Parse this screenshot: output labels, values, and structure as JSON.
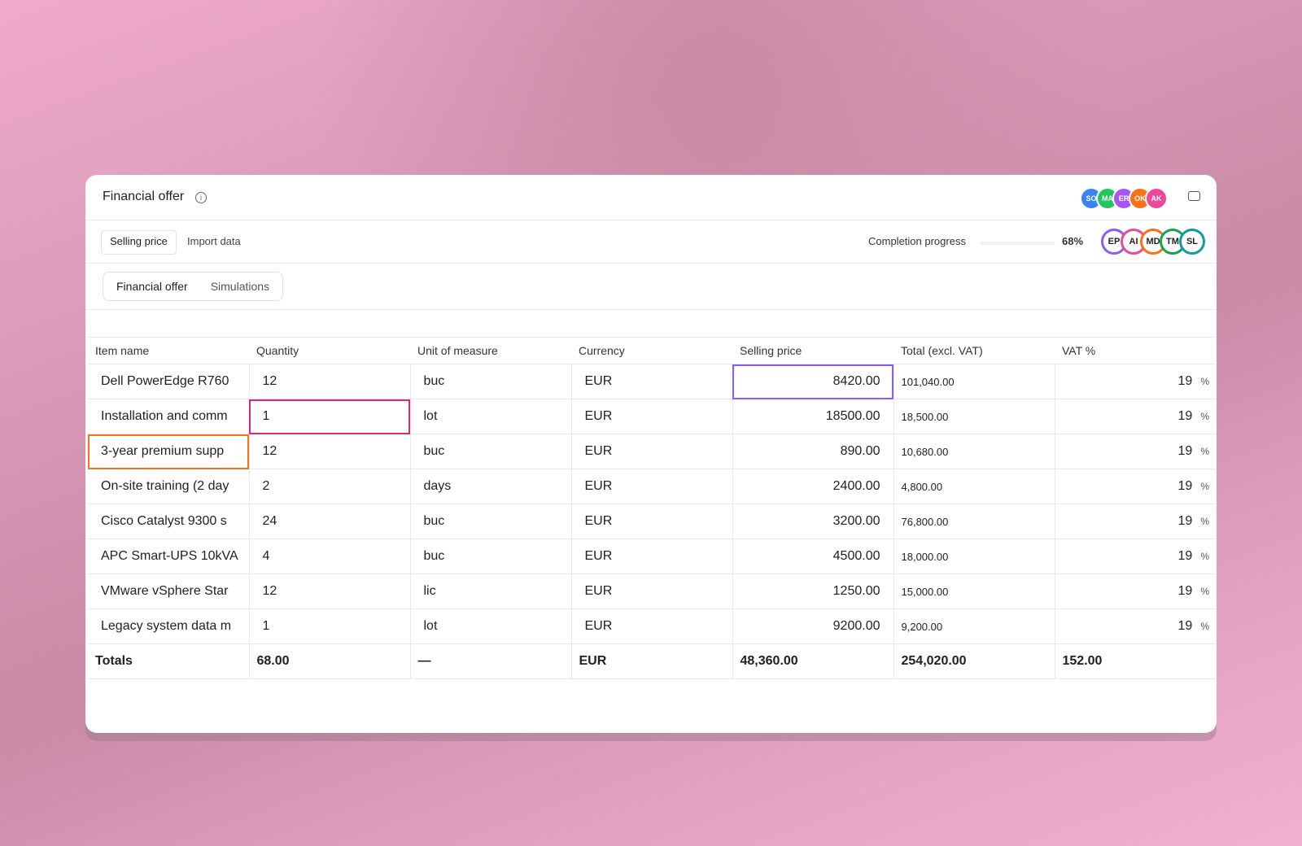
{
  "header": {
    "title": "Financial offer",
    "avatars": [
      "SO",
      "MA",
      "ER",
      "OK",
      "AK"
    ]
  },
  "toolbar": {
    "tabs": [
      "Selling price",
      "Import data"
    ],
    "progress_label": "Completion progress",
    "progress_text": "68%",
    "collaborators": [
      "EP",
      "AI",
      "MD",
      "TM",
      "SL"
    ]
  },
  "segments": [
    "Financial offer",
    "Simulations"
  ],
  "table": {
    "columns": [
      "Item name",
      "Quantity",
      "Unit of measure",
      "Currency",
      "Selling price",
      "Total (excl. VAT)",
      "VAT %"
    ],
    "vat_unit": "%",
    "rows": [
      [
        "Dell PowerEdge R760",
        "12",
        "buc",
        "EUR",
        "8420.00",
        "101,040.00",
        "19"
      ],
      [
        "Installation and comm",
        "1",
        "lot",
        "EUR",
        "18500.00",
        "18,500.00",
        "19"
      ],
      [
        "3-year premium supp",
        "12",
        "buc",
        "EUR",
        "890.00",
        "10,680.00",
        "19"
      ],
      [
        "On-site training (2 day",
        "2",
        "days",
        "EUR",
        "2400.00",
        "4,800.00",
        "19"
      ],
      [
        "Cisco Catalyst 9300 s",
        "24",
        "buc",
        "EUR",
        "3200.00",
        "76,800.00",
        "19"
      ],
      [
        "APC Smart-UPS 10kVA",
        "4",
        "buc",
        "EUR",
        "4500.00",
        "18,000.00",
        "19"
      ],
      [
        "VMware vSphere Star",
        "12",
        "lic",
        "EUR",
        "1250.00",
        "15,000.00",
        "19"
      ],
      [
        "Legacy system data m",
        "1",
        "lot",
        "EUR",
        "9200.00",
        "9,200.00",
        "19"
      ]
    ],
    "totals": [
      "Totals",
      "68.00",
      "—",
      "EUR",
      "48,360.00",
      "254,020.00",
      "152.00"
    ]
  }
}
